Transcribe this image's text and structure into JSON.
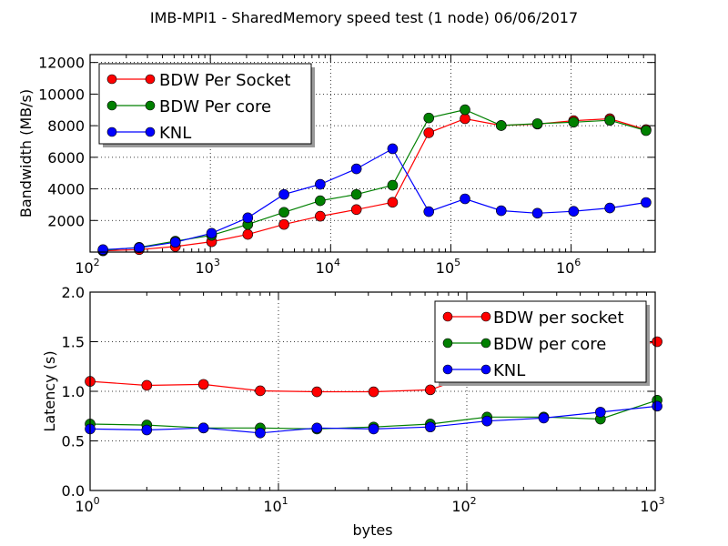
{
  "figure": {
    "suptitle": "IMB-MPI1 - SharedMemory speed test (1 node)  06/06/2017"
  },
  "chart_data": [
    {
      "type": "line",
      "id": "bandwidth",
      "title": "",
      "xlabel": "",
      "ylabel": "Bandwidth (MB/s)",
      "xscale": "log",
      "xlim": [
        100,
        5000000
      ],
      "ylim": [
        0,
        12500
      ],
      "xticks": [
        {
          "value": 100,
          "base": "10",
          "exp": "2"
        },
        {
          "value": 1000,
          "base": "10",
          "exp": "3"
        },
        {
          "value": 10000,
          "base": "10",
          "exp": "4"
        },
        {
          "value": 100000,
          "base": "10",
          "exp": "5"
        },
        {
          "value": 1000000,
          "base": "10",
          "exp": "6"
        }
      ],
      "yticks": [
        {
          "value": 2000,
          "label": "2000"
        },
        {
          "value": 4000,
          "label": "4000"
        },
        {
          "value": 6000,
          "label": "6000"
        },
        {
          "value": 8000,
          "label": "8000"
        },
        {
          "value": 10000,
          "label": "10000"
        },
        {
          "value": 12000,
          "label": "12000"
        }
      ],
      "grid": true,
      "legend_position": "upper-left",
      "x": [
        128,
        256,
        512,
        1024,
        2048,
        4096,
        8192,
        16384,
        32768,
        65536,
        131072,
        262144,
        524288,
        1048576,
        2097152,
        4194304
      ],
      "series": [
        {
          "name": "BDW Per Socket",
          "color": "#ff0000",
          "values": [
            80,
            155,
            350,
            655,
            1120,
            1750,
            2270,
            2690,
            3150,
            7550,
            8440,
            8010,
            8100,
            8320,
            8440,
            7750
          ]
        },
        {
          "name": "BDW Per core",
          "color": "#008000",
          "values": [
            110,
            300,
            690,
            1060,
            1750,
            2520,
            3250,
            3650,
            4230,
            8490,
            9010,
            8010,
            8130,
            8220,
            8340,
            7690
          ]
        },
        {
          "name": "KNL",
          "color": "#0000ff",
          "values": [
            155,
            270,
            620,
            1190,
            2170,
            3650,
            4290,
            5270,
            6540,
            2560,
            3370,
            2620,
            2460,
            2580,
            2790,
            3140
          ]
        }
      ]
    },
    {
      "type": "line",
      "id": "latency",
      "title": "",
      "xlabel": "bytes",
      "ylabel": "Latency (s)",
      "xscale": "log",
      "xlim": [
        1,
        1000
      ],
      "ylim": [
        0,
        2.0
      ],
      "xticks": [
        {
          "value": 1,
          "base": "10",
          "exp": "0"
        },
        {
          "value": 10,
          "base": "10",
          "exp": "1"
        },
        {
          "value": 100,
          "base": "10",
          "exp": "2"
        },
        {
          "value": 1000,
          "base": "10",
          "exp": "3"
        }
      ],
      "yticks": [
        {
          "value": 0.0,
          "label": "0.0"
        },
        {
          "value": 0.5,
          "label": "0.5"
        },
        {
          "value": 1.0,
          "label": "1.0"
        },
        {
          "value": 1.5,
          "label": "1.5"
        },
        {
          "value": 2.0,
          "label": "2.0"
        }
      ],
      "grid": true,
      "legend_position": "upper-right",
      "x": [
        1,
        2,
        4,
        8,
        16,
        32,
        64,
        128,
        256,
        512,
        1024
      ],
      "series": [
        {
          "name": "BDW per socket",
          "color": "#ff0000",
          "values": [
            1.1,
            1.06,
            1.07,
            1.005,
            0.995,
            0.995,
            1.015,
            1.22,
            1.3,
            1.4,
            1.5
          ]
        },
        {
          "name": "BDW per core",
          "color": "#008000",
          "values": [
            0.67,
            0.66,
            0.63,
            0.63,
            0.62,
            0.64,
            0.67,
            0.74,
            0.74,
            0.72,
            0.91
          ]
        },
        {
          "name": "KNL",
          "color": "#0000ff",
          "values": [
            0.62,
            0.61,
            0.63,
            0.58,
            0.63,
            0.62,
            0.64,
            0.7,
            0.73,
            0.79,
            0.85
          ]
        }
      ]
    }
  ]
}
